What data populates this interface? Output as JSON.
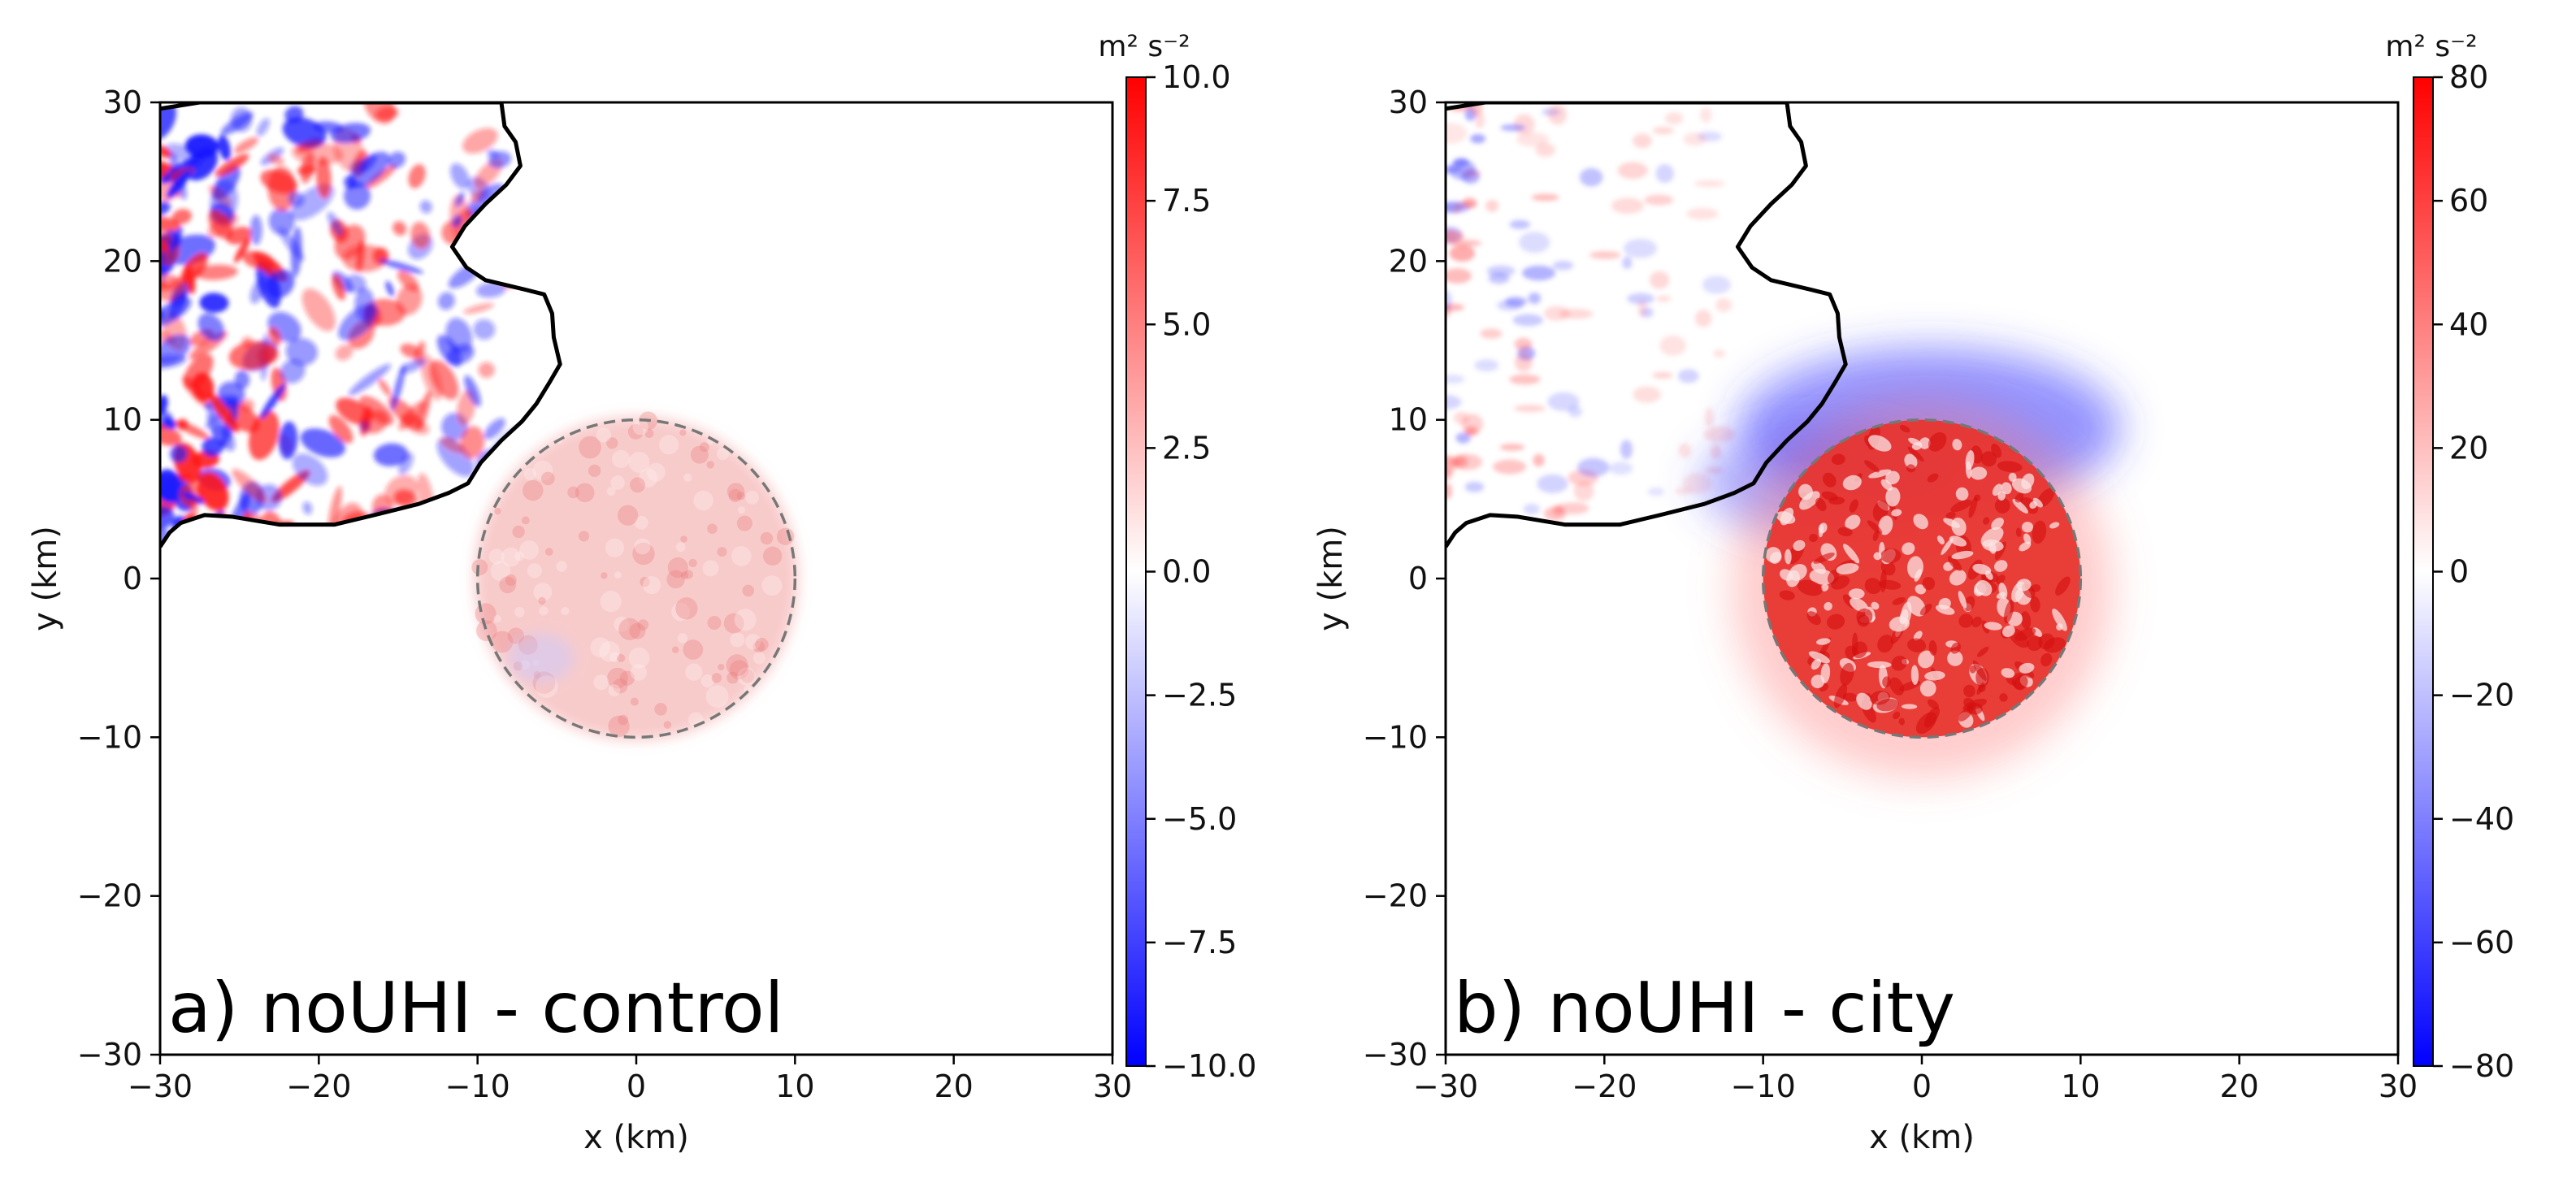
{
  "chart_data": [
    {
      "type": "heatmap",
      "panel_label": "a) noUHI - control",
      "xlabel": "x (km)",
      "ylabel": "y (km)",
      "xlim": [
        -30,
        30
      ],
      "ylim": [
        -30,
        30
      ],
      "xticks": [
        "−30",
        "−20",
        "−10",
        "0",
        "10",
        "20",
        "30"
      ],
      "yticks": [
        "−30",
        "−20",
        "−10",
        "0",
        "10",
        "20",
        "30"
      ],
      "colorbar": {
        "unit": "m² s⁻²",
        "range": [
          -10,
          10
        ],
        "ticks": [
          "10.0",
          "7.5",
          "5.0",
          "2.5",
          "0.0",
          "−2.5",
          "−5.0",
          "−7.5",
          "−10.0"
        ],
        "cmap": "bwr"
      },
      "city_circle": {
        "center": [
          0,
          0
        ],
        "radius_km": 10
      },
      "coastline_km": [
        [
          -30,
          29.6
        ],
        [
          -27.5,
          30
        ],
        [
          -21,
          30
        ],
        [
          -15,
          30
        ],
        [
          -8.5,
          30
        ],
        [
          -8.3,
          28.5
        ],
        [
          -7.6,
          27.5
        ],
        [
          -7.3,
          26
        ],
        [
          -8.2,
          24.8
        ],
        [
          -9.5,
          23.6
        ],
        [
          -10.8,
          22.2
        ],
        [
          -11.6,
          20.9
        ],
        [
          -10.7,
          19.6
        ],
        [
          -9.5,
          18.8
        ],
        [
          -7,
          18.2
        ],
        [
          -5.8,
          17.9
        ],
        [
          -5.3,
          16.7
        ],
        [
          -5.2,
          15.2
        ],
        [
          -4.8,
          13.5
        ],
        [
          -5.5,
          12.3
        ],
        [
          -6.3,
          11
        ],
        [
          -7.2,
          9.9
        ],
        [
          -8.5,
          8.7
        ],
        [
          -9.8,
          7.3
        ],
        [
          -10.6,
          6
        ],
        [
          -11.8,
          5.4
        ],
        [
          -13.7,
          4.7
        ],
        [
          -16.5,
          4
        ],
        [
          -19,
          3.4
        ],
        [
          -22.5,
          3.4
        ],
        [
          -25.5,
          3.9
        ],
        [
          -27.2,
          4
        ],
        [
          -28.7,
          3.5
        ],
        [
          -29.4,
          2.9
        ],
        [
          -30,
          2
        ]
      ],
      "field_description": "noisy red/blue turbulence over land in the northwest, faint positive values inside the city circle"
    },
    {
      "type": "heatmap",
      "panel_label": "b) noUHI - city",
      "xlabel": "x (km)",
      "ylabel": "y (km)",
      "xlim": [
        -30,
        30
      ],
      "ylim": [
        -30,
        30
      ],
      "xticks": [
        "−30",
        "−20",
        "−10",
        "0",
        "10",
        "20",
        "30"
      ],
      "yticks": [
        "−30",
        "−20",
        "−10",
        "0",
        "10",
        "20",
        "30"
      ],
      "colorbar": {
        "unit": "m² s⁻²",
        "range": [
          -80,
          80
        ],
        "ticks": [
          "80",
          "60",
          "40",
          "20",
          "0",
          "−20",
          "−40",
          "−60",
          "−80"
        ],
        "cmap": "bwr"
      },
      "city_circle": {
        "center": [
          0,
          0
        ],
        "radius_km": 10
      },
      "coastline_km": [
        [
          -30,
          29.6
        ],
        [
          -27.5,
          30
        ],
        [
          -21,
          30
        ],
        [
          -15,
          30
        ],
        [
          -8.5,
          30
        ],
        [
          -8.3,
          28.5
        ],
        [
          -7.6,
          27.5
        ],
        [
          -7.3,
          26
        ],
        [
          -8.2,
          24.8
        ],
        [
          -9.5,
          23.6
        ],
        [
          -10.8,
          22.2
        ],
        [
          -11.6,
          20.9
        ],
        [
          -10.7,
          19.6
        ],
        [
          -9.5,
          18.8
        ],
        [
          -7,
          18.2
        ],
        [
          -5.8,
          17.9
        ],
        [
          -5.3,
          16.7
        ],
        [
          -5.2,
          15.2
        ],
        [
          -4.8,
          13.5
        ],
        [
          -5.5,
          12.3
        ],
        [
          -6.3,
          11
        ],
        [
          -7.2,
          9.9
        ],
        [
          -8.5,
          8.7
        ],
        [
          -9.8,
          7.3
        ],
        [
          -10.6,
          6
        ],
        [
          -11.8,
          5.4
        ],
        [
          -13.7,
          4.7
        ],
        [
          -16.5,
          4
        ],
        [
          -19,
          3.4
        ],
        [
          -22.5,
          3.4
        ],
        [
          -25.5,
          3.9
        ],
        [
          -27.2,
          4
        ],
        [
          -28.7,
          3.5
        ],
        [
          -29.4,
          2.9
        ],
        [
          -30,
          2
        ]
      ],
      "field_description": "strong positive (red) values inside the city circle with a blue negative arc on its northern side"
    }
  ]
}
